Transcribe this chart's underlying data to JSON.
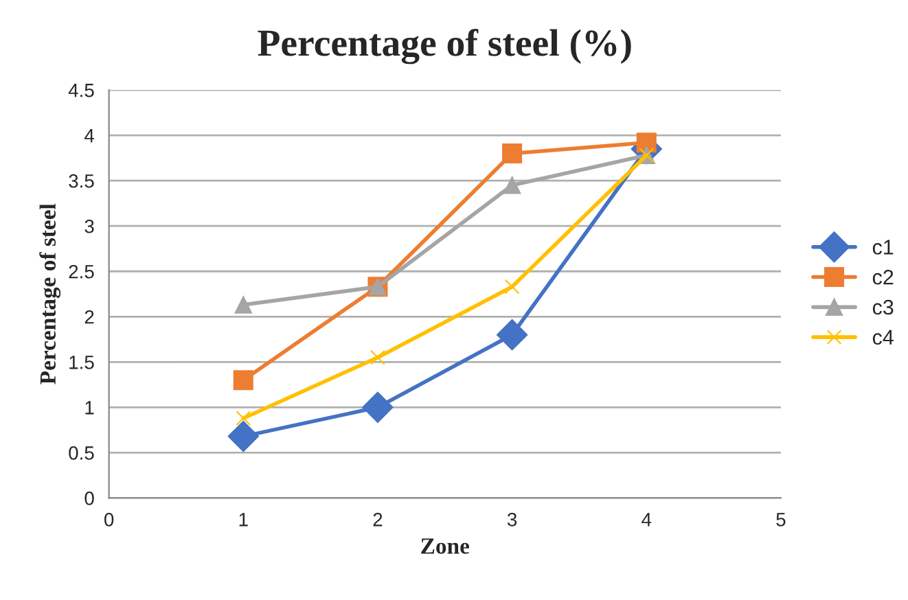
{
  "chart_data": {
    "type": "line",
    "title": "Percentage of steel (%)",
    "xlabel": "Zone",
    "ylabel": "Percentage of steel",
    "x": [
      1,
      2,
      3,
      4
    ],
    "series": [
      {
        "name": "c1",
        "color": "#4472c4",
        "marker": "diamond",
        "values": [
          0.68,
          1.0,
          1.8,
          3.85
        ]
      },
      {
        "name": "c2",
        "color": "#ed7d31",
        "marker": "square",
        "values": [
          1.3,
          2.33,
          3.8,
          3.92
        ]
      },
      {
        "name": "c3",
        "color": "#a5a5a5",
        "marker": "triangle",
        "values": [
          2.13,
          2.33,
          3.45,
          3.78
        ]
      },
      {
        "name": "c4",
        "color": "#ffc000",
        "marker": "cross",
        "values": [
          0.88,
          1.55,
          2.33,
          3.78
        ]
      }
    ],
    "xlim": [
      0,
      5
    ],
    "xticks": [
      0,
      1,
      2,
      3,
      4,
      5
    ],
    "ylim": [
      0,
      4.5
    ],
    "yticks": [
      0,
      0.5,
      1,
      1.5,
      2,
      2.5,
      3,
      3.5,
      4,
      4.5
    ],
    "grid": "y",
    "legend": "right",
    "line_style": "solid"
  }
}
